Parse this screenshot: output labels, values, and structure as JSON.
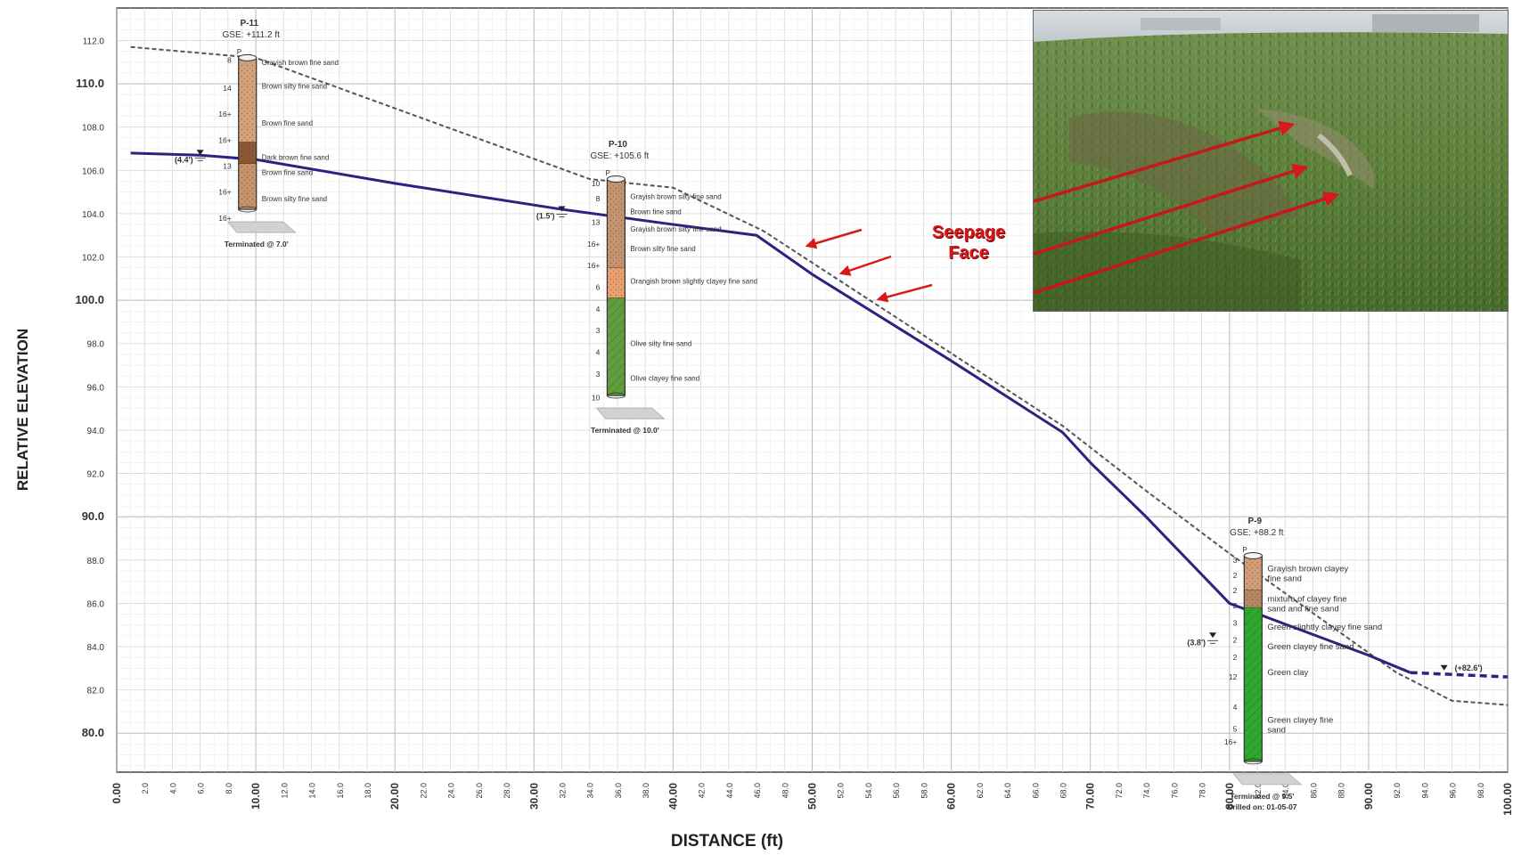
{
  "axes": {
    "ylabel": "RELATIVE ELEVATION",
    "xlabel": "DISTANCE (ft)",
    "y_ticks": [
      {
        "value": 112,
        "label": "112.0",
        "major": false
      },
      {
        "value": 110,
        "label": "110.0",
        "major": true
      },
      {
        "value": 108,
        "label": "108.0",
        "major": false
      },
      {
        "value": 106,
        "label": "106.0",
        "major": false
      },
      {
        "value": 104,
        "label": "104.0",
        "major": false
      },
      {
        "value": 102,
        "label": "102.0",
        "major": false
      },
      {
        "value": 100,
        "label": "100.0",
        "major": true
      },
      {
        "value": 98,
        "label": "98.0",
        "major": false
      },
      {
        "value": 96,
        "label": "96.0",
        "major": false
      },
      {
        "value": 94,
        "label": "94.0",
        "major": false
      },
      {
        "value": 92,
        "label": "92.0",
        "major": false
      },
      {
        "value": 90,
        "label": "90.0",
        "major": true
      },
      {
        "value": 88,
        "label": "88.0",
        "major": false
      },
      {
        "value": 86,
        "label": "86.0",
        "major": false
      },
      {
        "value": 84,
        "label": "84.0",
        "major": false
      },
      {
        "value": 82,
        "label": "82.0",
        "major": false
      },
      {
        "value": 80,
        "label": "80.0",
        "major": true
      }
    ],
    "x_ticks": [
      "0.00",
      "2.0",
      "4.0",
      "6.0",
      "8.0",
      "10.00",
      "12.0",
      "14.0",
      "16.0",
      "18.0",
      "20.00",
      "22.0",
      "24.0",
      "26.0",
      "28.0",
      "30.00",
      "32.0",
      "34.0",
      "36.0",
      "38.0",
      "40.00",
      "42.0",
      "44.0",
      "46.0",
      "48.0",
      "50.00",
      "52.0",
      "54.0",
      "56.0",
      "58.0",
      "60.00",
      "62.0",
      "64.0",
      "66.0",
      "68.0",
      "70.00",
      "72.0",
      "74.0",
      "76.0",
      "78.0",
      "80.00",
      "82.0",
      "84.0",
      "86.0",
      "88.0",
      "90.00",
      "92.0",
      "94.0",
      "96.0",
      "98.0",
      "100.00"
    ],
    "x_range": [
      0,
      100
    ],
    "y_range": [
      78.2,
      113.5
    ]
  },
  "chart_data": {
    "type": "line",
    "title": "",
    "xlabel": "DISTANCE (ft)",
    "ylabel": "RELATIVE ELEVATION",
    "xlim": [
      0,
      100
    ],
    "ylim": [
      78.2,
      113.5
    ],
    "series": [
      {
        "style": "dashed-gray",
        "x": [
          1,
          10,
          34,
          40,
          46.5,
          68,
          74,
          80,
          92,
          96,
          100
        ],
        "y": [
          111.7,
          111.2,
          105.6,
          105.2,
          103.2,
          94.2,
          91.2,
          88.3,
          82.8,
          81.5,
          81.3
        ]
      },
      {
        "style": "solid-navy",
        "x": [
          1,
          6,
          10,
          20,
          32,
          40,
          46,
          50,
          60,
          68,
          70,
          74,
          80,
          90,
          93
        ],
        "y": [
          106.8,
          106.7,
          106.5,
          105.4,
          104.2,
          103.5,
          103.0,
          101.2,
          97.2,
          93.9,
          92.5,
          90.0,
          86.0,
          83.6,
          82.8
        ]
      },
      {
        "style": "dashed-navy",
        "x": [
          93,
          100
        ],
        "y": [
          82.8,
          82.6
        ]
      }
    ]
  },
  "borings": [
    {
      "id": "P-11",
      "gse": "GSE: +111.2 ft",
      "x": 9.4,
      "top": 111.2,
      "bottom": 104.2,
      "terminated": "Terminated @ 7.0'",
      "drilled": "",
      "water_label": "(4.4')",
      "water_x": 6,
      "water_elev": 106.7,
      "layers": [
        {
          "top": 111.2,
          "bottom": 107.3,
          "color": "#d3a27a",
          "pattern": "sand"
        },
        {
          "top": 107.3,
          "bottom": 106.3,
          "color": "#8a5a36",
          "pattern": "sand"
        },
        {
          "top": 106.3,
          "bottom": 104.2,
          "color": "#c4936c",
          "pattern": "sand"
        }
      ],
      "blows": [
        {
          "elev": 111.1,
          "text": "8"
        },
        {
          "elev": 109.8,
          "text": "14"
        },
        {
          "elev": 108.6,
          "text": "16+"
        },
        {
          "elev": 107.4,
          "text": "16+"
        },
        {
          "elev": 106.2,
          "text": "13"
        },
        {
          "elev": 105.0,
          "text": "16+"
        },
        {
          "elev": 103.8,
          "text": "16+"
        }
      ],
      "descriptions": [
        {
          "elev": 111.0,
          "text": "Grayish brown fine sand"
        },
        {
          "elev": 109.9,
          "text": "Brown silty fine sand"
        },
        {
          "elev": 108.2,
          "text": "Brown fine sand"
        },
        {
          "elev": 106.6,
          "text": "Dark brown fine sand"
        },
        {
          "elev": 105.9,
          "text": "Brown fine sand"
        },
        {
          "elev": 104.7,
          "text": "Brown silty fine sand"
        }
      ]
    },
    {
      "id": "P-10",
      "gse": "GSE: +105.6 ft",
      "x": 35.9,
      "top": 105.6,
      "bottom": 95.6,
      "terminated": "Terminated @ 10.0'",
      "drilled": "",
      "water_label": "(1.5')",
      "water_x": 32,
      "water_elev": 104.1,
      "layers": [
        {
          "top": 105.6,
          "bottom": 101.5,
          "color": "#c49370",
          "pattern": "sand"
        },
        {
          "top": 101.5,
          "bottom": 100.1,
          "color": "#e7a070",
          "pattern": "sand"
        },
        {
          "top": 100.1,
          "bottom": 95.6,
          "color": "#5f9e3d",
          "pattern": "clay"
        }
      ],
      "blows": [
        {
          "elev": 105.4,
          "text": "10"
        },
        {
          "elev": 104.7,
          "text": "8"
        },
        {
          "elev": 103.6,
          "text": "13"
        },
        {
          "elev": 102.6,
          "text": "16+"
        },
        {
          "elev": 101.6,
          "text": "16+"
        },
        {
          "elev": 100.6,
          "text": "6"
        },
        {
          "elev": 99.6,
          "text": "4"
        },
        {
          "elev": 98.6,
          "text": "3"
        },
        {
          "elev": 97.6,
          "text": "4"
        },
        {
          "elev": 96.6,
          "text": "3"
        },
        {
          "elev": 95.5,
          "text": "10"
        }
      ],
      "descriptions": [
        {
          "elev": 104.8,
          "text": "Grayish brown silty fine sand"
        },
        {
          "elev": 104.1,
          "text": "Brown fine sand"
        },
        {
          "elev": 103.3,
          "text": "Grayish brown silty fine sand"
        },
        {
          "elev": 102.4,
          "text": "Brown silty fine sand"
        },
        {
          "elev": 100.9,
          "text": "Orangish brown slightly clayey fine sand"
        },
        {
          "elev": 98.0,
          "text": "Olive silty fine sand"
        },
        {
          "elev": 96.4,
          "text": "Olive clayey fine sand"
        }
      ]
    },
    {
      "id": "P-9",
      "gse": "GSE: +88.2 ft",
      "x": 81.7,
      "top": 88.2,
      "bottom": 78.7,
      "terminated": "Terminated @ 9.5'",
      "drilled": "Drilled on: 01-05-07",
      "water_label": "(3.8')",
      "water_x": 78.8,
      "water_elev": 84.4,
      "layers": [
        {
          "top": 88.2,
          "bottom": 86.6,
          "color": "#d19c78",
          "pattern": "sand"
        },
        {
          "top": 86.6,
          "bottom": 85.8,
          "color": "#b58764",
          "pattern": "sand"
        },
        {
          "top": 85.8,
          "bottom": 78.7,
          "color": "#2fa82f",
          "pattern": "clay"
        }
      ],
      "blows": [
        {
          "elev": 88.0,
          "text": "3"
        },
        {
          "elev": 87.3,
          "text": "2"
        },
        {
          "elev": 86.6,
          "text": "2"
        },
        {
          "elev": 85.9,
          "text": "2"
        },
        {
          "elev": 85.1,
          "text": "3"
        },
        {
          "elev": 84.3,
          "text": "2"
        },
        {
          "elev": 83.5,
          "text": "2"
        },
        {
          "elev": 82.6,
          "text": "12"
        },
        {
          "elev": 81.2,
          "text": "4"
        },
        {
          "elev": 80.2,
          "text": "5"
        },
        {
          "elev": 79.6,
          "text": "16+"
        }
      ],
      "descriptions": [
        {
          "elev": 87.6,
          "text": "Grayish brown clayey",
          "cont": "fine sand"
        },
        {
          "elev": 86.2,
          "text": "mixture of clayey fine",
          "cont": "sand and fine sand"
        },
        {
          "elev": 84.9,
          "text": "Green slightly clayey fine sand"
        },
        {
          "elev": 84.0,
          "text": "Green clayey fine sand"
        },
        {
          "elev": 82.8,
          "text": "Green clay"
        },
        {
          "elev": 80.6,
          "text": "Green clayey fine",
          "cont": "sand"
        }
      ]
    }
  ],
  "free_labels": [
    {
      "x": 96.2,
      "elev": 82.9,
      "text": "(+82.6')"
    }
  ],
  "annotation": {
    "seepage_line1": "Seepage",
    "seepage_line2": "Face"
  },
  "colors": {
    "phreatic": "#2b2380",
    "ground": "#555555",
    "arrow": "#d8191c",
    "grid": "#d9d9d9"
  }
}
